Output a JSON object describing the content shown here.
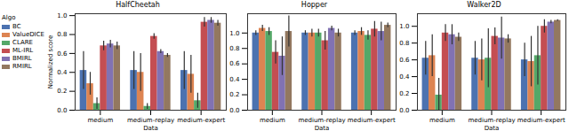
{
  "chart_data": [
    {
      "type": "bar",
      "title": "HalfCheetah",
      "x_label": "Data",
      "y_label": "Normalized score",
      "categories": [
        "medium",
        "medium-replay",
        "medium-expert"
      ],
      "ylim": [
        0,
        1.02
      ],
      "yticks": [
        {
          "value": 0,
          "label": "0.0"
        },
        {
          "value": 0.2,
          "label": "0.2"
        },
        {
          "value": 0.4,
          "label": "0.4"
        },
        {
          "value": 0.6,
          "label": "0.6"
        },
        {
          "value": 0.8,
          "label": "0.8"
        },
        {
          "value": 1,
          "label": "1.0"
        }
      ],
      "legend": "left",
      "legend_title": "Algo",
      "series": [
        {
          "name": "BC",
          "color": "#4c72b0",
          "values": [
            0.42,
            0.42,
            0.42
          ],
          "errors": [
            0.2,
            0.2,
            0.2
          ]
        },
        {
          "name": "ValueDICE",
          "color": "#dd8452",
          "values": [
            0.28,
            0.4,
            0.38
          ],
          "errors": [
            0.12,
            0.2,
            0.2
          ]
        },
        {
          "name": "CLARE",
          "color": "#55a868",
          "values": [
            0.07,
            0.04,
            0.1
          ],
          "errors": [
            0.06,
            0.03,
            0.08
          ]
        },
        {
          "name": "ML-IRL",
          "color": "#c44e52",
          "values": [
            0.68,
            0.78,
            0.93
          ],
          "errors": [
            0.05,
            0.03,
            0.05
          ]
        },
        {
          "name": "BMIRL",
          "color": "#8172b3",
          "values": [
            0.7,
            0.62,
            0.95
          ],
          "errors": [
            0.04,
            0.02,
            0.03
          ]
        },
        {
          "name": "RMIRL",
          "color": "#937860",
          "values": [
            0.68,
            0.58,
            0.92
          ],
          "errors": [
            0.04,
            0.02,
            0.03
          ]
        }
      ]
    },
    {
      "type": "bar",
      "title": "Hopper",
      "x_label": "Data",
      "categories": [
        "medium",
        "medium-replay",
        "medium-expert"
      ],
      "ylim": [
        0,
        1.25
      ],
      "yticks": [
        {
          "value": 0,
          "label": "0.0"
        },
        {
          "value": 0.2,
          "label": "0.2"
        },
        {
          "value": 0.4,
          "label": "0.4"
        },
        {
          "value": 0.6,
          "label": "0.6"
        },
        {
          "value": 0.8,
          "label": "0.8"
        },
        {
          "value": 1,
          "label": "1.0"
        }
      ],
      "series": [
        {
          "name": "BC",
          "color": "#4c72b0",
          "values": [
            1.0,
            1.0,
            1.0
          ],
          "errors": [
            0.03,
            0.03,
            0.03
          ]
        },
        {
          "name": "ValueDICE",
          "color": "#dd8452",
          "values": [
            1.06,
            1.0,
            1.02
          ],
          "errors": [
            0.04,
            0.05,
            0.05
          ]
        },
        {
          "name": "CLARE",
          "color": "#55a868",
          "values": [
            1.02,
            1.0,
            0.97
          ],
          "errors": [
            0.05,
            0.05,
            0.06
          ]
        },
        {
          "name": "ML-IRL",
          "color": "#c44e52",
          "values": [
            0.75,
            0.9,
            1.05
          ],
          "errors": [
            0.15,
            0.12,
            0.1
          ]
        },
        {
          "name": "BMIRL",
          "color": "#8172b3",
          "values": [
            0.7,
            1.06,
            1.02
          ],
          "errors": [
            0.25,
            0.03,
            0.12
          ]
        },
        {
          "name": "RMIRL",
          "color": "#937860",
          "values": [
            1.02,
            1.0,
            1.1
          ],
          "errors": [
            0.2,
            0.05,
            0.03
          ]
        }
      ]
    },
    {
      "type": "bar",
      "title": "Walker2D",
      "x_label": "Data",
      "categories": [
        "medium",
        "medium-replay",
        "medium-expert"
      ],
      "ylim": [
        0,
        1.15
      ],
      "yticks": [
        {
          "value": 0,
          "label": "0.0"
        },
        {
          "value": 0.2,
          "label": "0.2"
        },
        {
          "value": 0.4,
          "label": "0.4"
        },
        {
          "value": 0.6,
          "label": "0.6"
        },
        {
          "value": 0.8,
          "label": "0.8"
        },
        {
          "value": 1,
          "label": "1.0"
        }
      ],
      "series": [
        {
          "name": "BC",
          "color": "#4c72b0",
          "values": [
            0.62,
            0.62,
            0.6
          ],
          "errors": [
            0.2,
            0.2,
            0.2
          ]
        },
        {
          "name": "ValueDICE",
          "color": "#dd8452",
          "values": [
            0.65,
            0.6,
            0.58
          ],
          "errors": [
            0.25,
            0.25,
            0.3
          ]
        },
        {
          "name": "CLARE",
          "color": "#55a868",
          "values": [
            0.18,
            0.62,
            0.65
          ],
          "errors": [
            0.2,
            0.35,
            0.35
          ]
        },
        {
          "name": "ML-IRL",
          "color": "#c44e52",
          "values": [
            0.92,
            0.88,
            1.0
          ],
          "errors": [
            0.1,
            0.1,
            0.08
          ]
        },
        {
          "name": "BMIRL",
          "color": "#8172b3",
          "values": [
            0.9,
            0.86,
            1.05
          ],
          "errors": [
            0.12,
            0.25,
            0.02
          ]
        },
        {
          "name": "RMIRL",
          "color": "#937860",
          "values": [
            0.87,
            0.85,
            1.07
          ],
          "errors": [
            0.05,
            0.05,
            0.01
          ]
        }
      ]
    }
  ]
}
